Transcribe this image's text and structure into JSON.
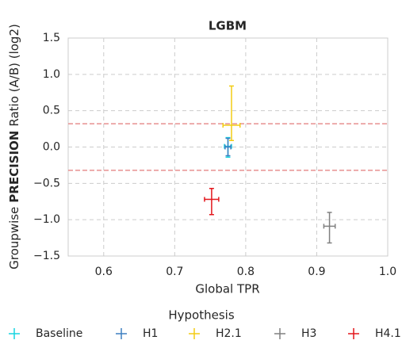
{
  "chart_data": {
    "type": "errorbar",
    "title": "LGBM",
    "xlabel": "Global TPR",
    "ylabel": {
      "prefix": "Groupwise",
      "emphasis": "PRECISION",
      "suffix": "Ratio (A/B) (log2)"
    },
    "xlim": [
      0.55,
      1.0
    ],
    "xticks": [
      0.6,
      0.7,
      0.8,
      0.9,
      {
        "value": 1,
        "label": "1.0"
      }
    ],
    "ylim": [
      -1.5,
      1.5
    ],
    "yticks": [
      {
        "value": -1.5,
        "label": "−1.5"
      },
      {
        "value": -1,
        "label": "−1.0"
      },
      {
        "value": -0.5,
        "label": "−0.5"
      },
      {
        "value": 0,
        "label": "0.0"
      },
      0.5,
      {
        "value": 1,
        "label": "1.0"
      },
      1.5
    ],
    "grid": true,
    "reference_lines": {
      "values": [
        0.32,
        -0.32
      ],
      "color": "#e89090"
    },
    "legend": {
      "title": "Hypothesis",
      "position": "bottom"
    },
    "series": [
      {
        "name": "Baseline",
        "color": "#17d4e0",
        "x": [
          0.775
        ],
        "values": [
          0.01
        ],
        "xerr": [
          0.005
        ],
        "yerr": [
          [
            0.15,
            0.12
          ]
        ]
      },
      {
        "name": "H1",
        "color": "#3d7fc0",
        "x": [
          0.775
        ],
        "values": [
          0.0
        ],
        "xerr": [
          0.004
        ],
        "yerr": [
          [
            0.12,
            0.12
          ]
        ]
      },
      {
        "name": "H2.1",
        "color": "#f2cc14",
        "x": [
          0.78
        ],
        "values": [
          0.3
        ],
        "xerr": [
          0.012
        ],
        "yerr": [
          [
            0.21,
            0.54
          ]
        ]
      },
      {
        "name": "H3",
        "color": "#808080",
        "x": [
          0.918
        ],
        "values": [
          -1.09
        ],
        "xerr": [
          0.008
        ],
        "yerr": [
          [
            0.23,
            0.19
          ]
        ]
      },
      {
        "name": "H4.1",
        "color": "#e3171c",
        "x": [
          0.752
        ],
        "values": [
          -0.72
        ],
        "xerr": [
          0.01
        ],
        "yerr": [
          [
            0.21,
            0.15
          ]
        ]
      }
    ]
  }
}
